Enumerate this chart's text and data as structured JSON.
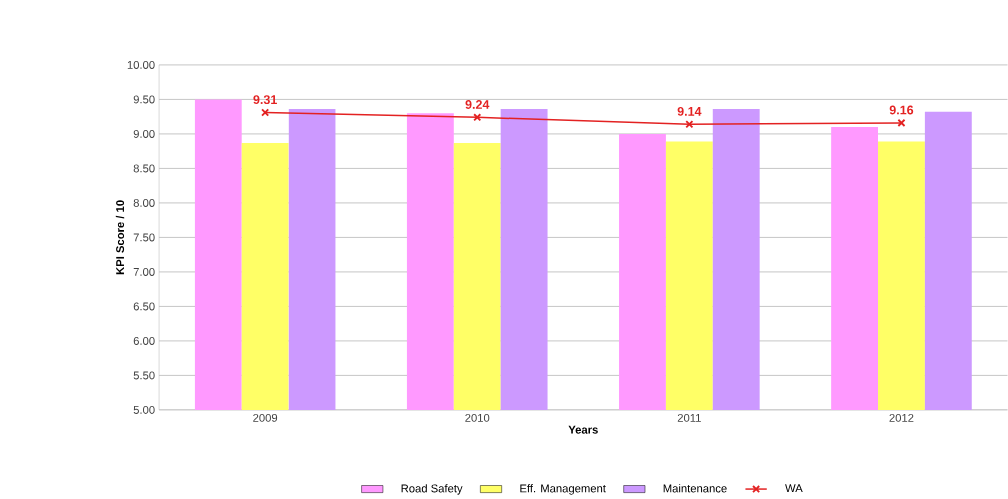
{
  "chart_data": {
    "type": "bar",
    "xlabel": "Years",
    "ylabel": "KPI Score / 10",
    "categories": [
      "2009",
      "2010",
      "2011",
      "2012"
    ],
    "series": [
      {
        "name": "Road Safety",
        "color": "#ff99ff",
        "values": [
          9.5,
          9.3,
          9.0,
          9.1
        ]
      },
      {
        "name": "Eff. Management",
        "color": "#ffff66",
        "values": [
          8.87,
          8.87,
          8.89,
          8.89
        ]
      },
      {
        "name": "Maintenance",
        "color": "#cc99ff",
        "values": [
          9.36,
          9.36,
          9.36,
          9.32
        ]
      },
      {
        "name": "WA",
        "type": "line",
        "color": "#e32222",
        "marker": "cross",
        "values": [
          9.31,
          9.24,
          9.14,
          9.16
        ],
        "value_labels": [
          "9.31",
          "9.24",
          "9.14",
          "9.16"
        ]
      }
    ],
    "ylim": [
      5.0,
      10.0
    ],
    "yticks": [
      {
        "value": 5.0,
        "label": "5.00"
      },
      {
        "value": 5.5,
        "label": "5.50"
      },
      {
        "value": 6.0,
        "label": "6.00"
      },
      {
        "value": 6.5,
        "label": "6.50"
      },
      {
        "value": 7.0,
        "label": "7.00"
      },
      {
        "value": 7.5,
        "label": "7.50"
      },
      {
        "value": 8.0,
        "label": "8.00"
      },
      {
        "value": 8.5,
        "label": "8.50"
      },
      {
        "value": 9.0,
        "label": "9.00"
      },
      {
        "value": 9.5,
        "label": "9.50"
      },
      {
        "value": 10.0,
        "label": "10.00"
      }
    ],
    "grid": "y",
    "legend": "bottom"
  }
}
